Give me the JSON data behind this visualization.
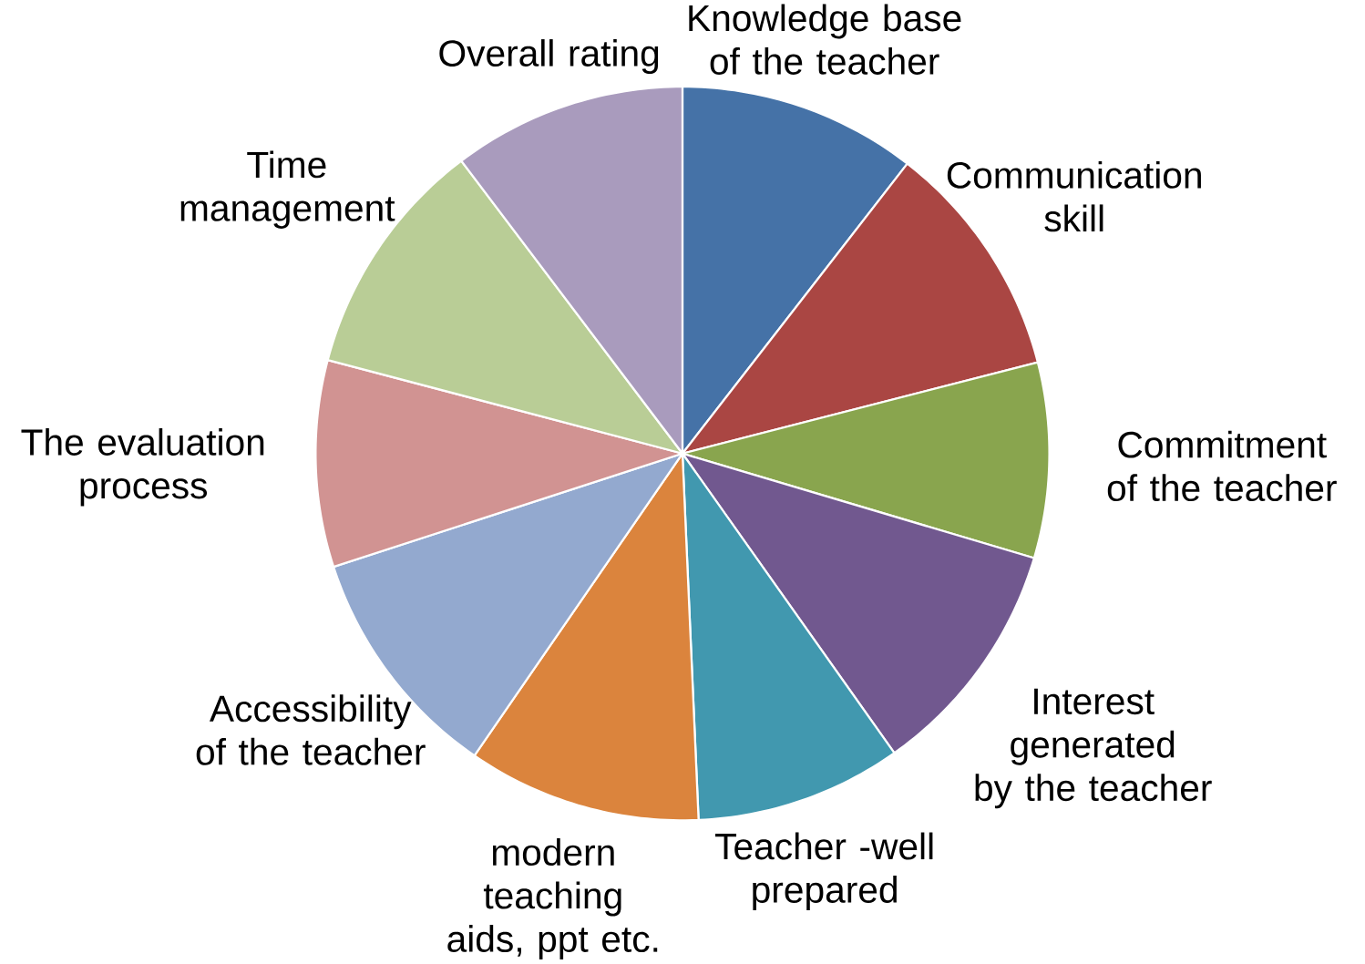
{
  "chart_data": {
    "type": "pie",
    "categories": [
      "Knowledge base of the teacher",
      "Communication skill",
      "Commitment of the teacher",
      "Interest generated by the teacher",
      "Teacher -well prepared",
      "modern teaching aids, ppt etc.",
      "Accessibility of the teacher",
      "The evaluation process",
      "Time management",
      "Overall rating"
    ],
    "values": [
      10.5,
      10.5,
      8.6,
      10.6,
      9.1,
      10.3,
      10.4,
      9.1,
      10.6,
      10.3
    ],
    "colors": [
      "#4572a7",
      "#aa4643",
      "#89a54e",
      "#71588f",
      "#4198af",
      "#db843d",
      "#93a9cf",
      "#d19392",
      "#b9cd96",
      "#a99bbd"
    ]
  }
}
